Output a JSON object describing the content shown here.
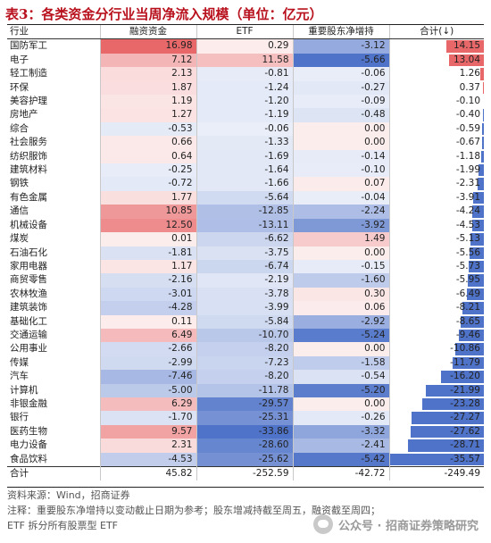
{
  "title": "表3：各类资金分行业当周净流入规模（单位：亿元）",
  "headers": {
    "industry": "行业",
    "margin": "融资资金",
    "etf": "ETF",
    "shareholder": "重要股东净增持",
    "total": "合计(↓)"
  },
  "colors": {
    "positive": "#e8686a",
    "negative": "#4f73c8",
    "title": "#b8111d"
  },
  "rows": [
    {
      "name": "国防军工",
      "margin": "16.98",
      "etf": "0.29",
      "shareholder": "-3.12",
      "total": "14.15"
    },
    {
      "name": "电子",
      "margin": "7.12",
      "etf": "11.58",
      "shareholder": "-5.66",
      "total": "13.04"
    },
    {
      "name": "轻工制造",
      "margin": "2.13",
      "etf": "-0.81",
      "shareholder": "-0.06",
      "total": "1.26"
    },
    {
      "name": "环保",
      "margin": "1.87",
      "etf": "-1.24",
      "shareholder": "-0.27",
      "total": "0.37"
    },
    {
      "name": "美容护理",
      "margin": "1.19",
      "etf": "-1.20",
      "shareholder": "-0.09",
      "total": "-0.10"
    },
    {
      "name": "房地产",
      "margin": "1.27",
      "etf": "-1.19",
      "shareholder": "-0.48",
      "total": "-0.40"
    },
    {
      "name": "综合",
      "margin": "-0.53",
      "etf": "-0.06",
      "shareholder": "0.00",
      "total": "-0.59"
    },
    {
      "name": "社会服务",
      "margin": "0.66",
      "etf": "-1.33",
      "shareholder": "0.00",
      "total": "-0.67"
    },
    {
      "name": "纺织服饰",
      "margin": "0.64",
      "etf": "-1.69",
      "shareholder": "-0.14",
      "total": "-1.18"
    },
    {
      "name": "建筑材料",
      "margin": "-0.25",
      "etf": "-1.64",
      "shareholder": "-0.10",
      "total": "-1.99"
    },
    {
      "name": "钢铁",
      "margin": "-0.72",
      "etf": "-1.66",
      "shareholder": "0.07",
      "total": "-2.31"
    },
    {
      "name": "有色金属",
      "margin": "1.77",
      "etf": "-5.64",
      "shareholder": "-0.04",
      "total": "-3.91"
    },
    {
      "name": "通信",
      "margin": "10.85",
      "etf": "-12.85",
      "shareholder": "-2.24",
      "total": "-4.24"
    },
    {
      "name": "机械设备",
      "margin": "12.50",
      "etf": "-13.11",
      "shareholder": "-3.92",
      "total": "-4.53"
    },
    {
      "name": "煤炭",
      "margin": "0.01",
      "etf": "-6.62",
      "shareholder": "1.49",
      "total": "-5.13"
    },
    {
      "name": "石油石化",
      "margin": "-1.81",
      "etf": "-3.75",
      "shareholder": "0.00",
      "total": "-5.56"
    },
    {
      "name": "家用电器",
      "margin": "1.17",
      "etf": "-6.74",
      "shareholder": "-0.15",
      "total": "-5.73"
    },
    {
      "name": "商贸零售",
      "margin": "-2.16",
      "etf": "-2.19",
      "shareholder": "-1.60",
      "total": "-5.95"
    },
    {
      "name": "农林牧渔",
      "margin": "-3.01",
      "etf": "-3.78",
      "shareholder": "0.30",
      "total": "-6.49"
    },
    {
      "name": "建筑装饰",
      "margin": "-4.28",
      "etf": "-3.99",
      "shareholder": "0.06",
      "total": "-8.21"
    },
    {
      "name": "基础化工",
      "margin": "0.11",
      "etf": "-5.84",
      "shareholder": "-2.92",
      "total": "-8.65"
    },
    {
      "name": "交通运输",
      "margin": "6.49",
      "etf": "-10.70",
      "shareholder": "-5.24",
      "total": "-9.46"
    },
    {
      "name": "公用事业",
      "margin": "-2.66",
      "etf": "-8.20",
      "shareholder": "0.00",
      "total": "-10.86"
    },
    {
      "name": "传媒",
      "margin": "-2.99",
      "etf": "-7.23",
      "shareholder": "-1.58",
      "total": "-11.79"
    },
    {
      "name": "汽车",
      "margin": "-7.46",
      "etf": "-8.20",
      "shareholder": "-0.54",
      "total": "-16.20"
    },
    {
      "name": "计算机",
      "margin": "-5.00",
      "etf": "-11.78",
      "shareholder": "-5.20",
      "total": "-21.99"
    },
    {
      "name": "非银金融",
      "margin": "6.29",
      "etf": "-29.57",
      "shareholder": "0.00",
      "total": "-23.28"
    },
    {
      "name": "银行",
      "margin": "-1.70",
      "etf": "-25.31",
      "shareholder": "-0.26",
      "total": "-27.27"
    },
    {
      "name": "医药生物",
      "margin": "9.57",
      "etf": "-33.86",
      "shareholder": "-3.32",
      "total": "-27.62"
    },
    {
      "name": "电力设备",
      "margin": "2.31",
      "etf": "-28.60",
      "shareholder": "-2.41",
      "total": "-28.71"
    },
    {
      "name": "食品饮料",
      "margin": "-4.53",
      "etf": "-25.62",
      "shareholder": "-5.42",
      "total": "-35.57"
    }
  ],
  "total_row": {
    "name": "合计",
    "margin": "45.82",
    "etf": "-252.59",
    "shareholder": "-42.72",
    "total": "-249.49"
  },
  "notes": [
    "资料来源：Wind，招商证券",
    "注释：重要股东净增持以变动截止日期为参考；股东增减持截至周五，融资截至周四；",
    "ETF 拆分所有股票型 ETF"
  ],
  "watermark": "公众号 · 招商证券策略研究"
}
